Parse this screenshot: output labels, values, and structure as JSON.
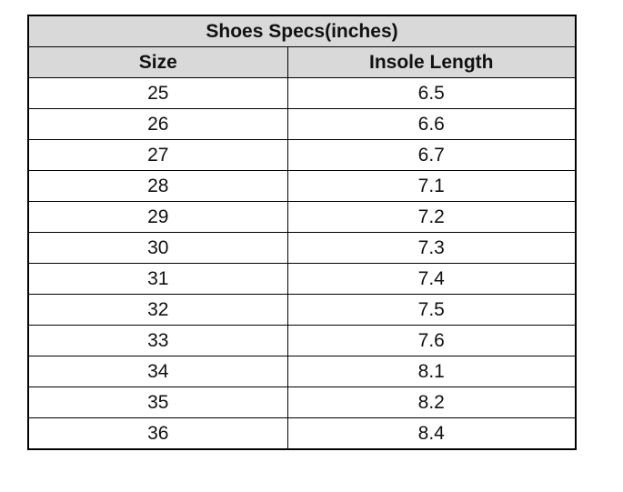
{
  "table": {
    "title": "Shoes Specs(inches)",
    "columns": [
      "Size",
      "Insole Length"
    ],
    "rows": [
      [
        "25",
        "6.5"
      ],
      [
        "26",
        "6.6"
      ],
      [
        "27",
        "6.7"
      ],
      [
        "28",
        "7.1"
      ],
      [
        "29",
        "7.2"
      ],
      [
        "30",
        "7.3"
      ],
      [
        "31",
        "7.4"
      ],
      [
        "32",
        "7.5"
      ],
      [
        "33",
        "7.6"
      ],
      [
        "34",
        "8.1"
      ],
      [
        "35",
        "8.2"
      ],
      [
        "36",
        "8.4"
      ]
    ],
    "header_color": "#d9d9d9"
  }
}
